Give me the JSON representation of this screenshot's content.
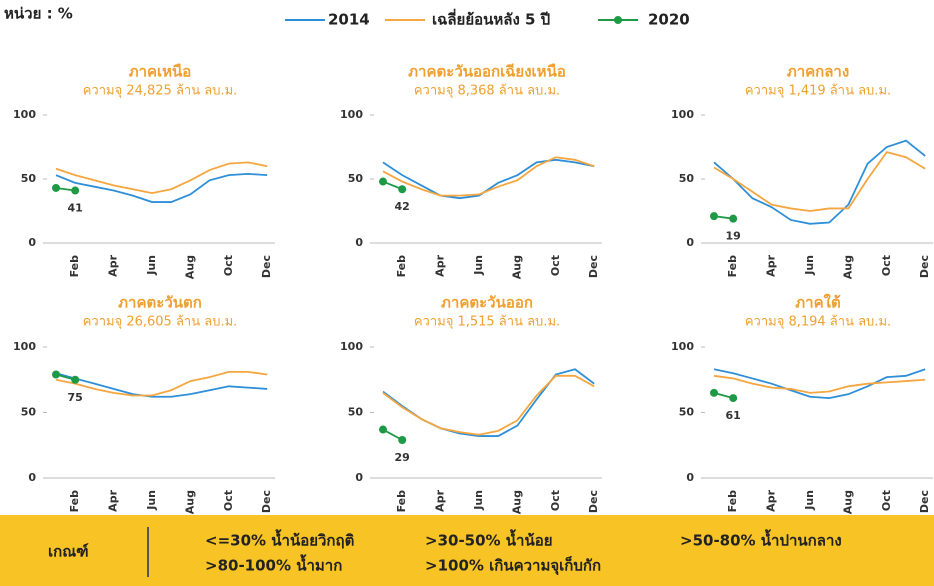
{
  "unit": "หน่วย : %",
  "criteria": {
    "label": "เกณฑ์",
    "items": [
      "<=30% น้ำน้อยวิกฤติ",
      ">80-100% น้ำมาก",
      ">30-50% น้ำน้อย",
      ">100% เกินความจุเก็บกัก",
      ">50-80% น้ำปานกลาง"
    ]
  },
  "chart_data": [
    {
      "type": "line",
      "title": "ภาคเหนือ",
      "subtitle": "ความจุ 24,825 ล้าน ลบ.ม.",
      "categories": [
        null,
        "Feb",
        null,
        "Apr",
        null,
        "Jun",
        null,
        "Aug",
        null,
        "Oct",
        null,
        "Dec"
      ],
      "series": [
        {
          "name": "2014",
          "color": "#2e8fd8",
          "values": [
            53,
            47,
            44,
            41,
            37,
            32,
            32,
            38,
            49,
            53,
            54,
            53
          ]
        },
        {
          "name": "เฉลี่ยย้อนหลัง 5 ปี",
          "color": "#f5a640",
          "values": [
            58,
            53,
            49,
            45,
            42,
            39,
            42,
            49,
            57,
            62,
            63,
            60
          ]
        },
        {
          "name": "2020",
          "color": "#1e9a46",
          "markers": true,
          "values": [
            43,
            41,
            null,
            null,
            null,
            null,
            null,
            null,
            null,
            null,
            null,
            null
          ]
        }
      ],
      "ylim": [
        0,
        100
      ],
      "yticks": [
        0,
        50,
        100
      ]
    },
    {
      "type": "line",
      "title": "ภาคตะวันออกเฉียงเหนือ",
      "subtitle": "ความจุ 8,368 ล้าน ลบ.ม.",
      "categories": [
        null,
        "Feb",
        null,
        "Apr",
        null,
        "Jun",
        null,
        "Aug",
        null,
        "Oct",
        null,
        "Dec"
      ],
      "series": [
        {
          "name": "2014",
          "color": "#2e8fd8",
          "values": [
            63,
            53,
            45,
            37,
            35,
            37,
            47,
            53,
            63,
            65,
            63,
            60
          ]
        },
        {
          "name": "เฉลี่ยย้อนหลัง 5 ปี",
          "color": "#f5a640",
          "values": [
            56,
            48,
            42,
            37,
            37,
            38,
            44,
            49,
            60,
            67,
            65,
            60
          ]
        },
        {
          "name": "2020",
          "color": "#1e9a46",
          "markers": true,
          "values": [
            48,
            42,
            null,
            null,
            null,
            null,
            null,
            null,
            null,
            null,
            null,
            null
          ]
        }
      ],
      "ylim": [
        0,
        100
      ],
      "yticks": [
        0,
        50,
        100
      ]
    },
    {
      "type": "line",
      "title": "ภาคกลาง",
      "subtitle": "ความจุ 1,419 ล้าน ลบ.ม.",
      "categories": [
        null,
        "Feb",
        null,
        "Apr",
        null,
        "Jun",
        null,
        "Aug",
        null,
        "Oct",
        null,
        "Dec"
      ],
      "series": [
        {
          "name": "2014",
          "color": "#2e8fd8",
          "values": [
            63,
            50,
            35,
            28,
            18,
            15,
            16,
            30,
            62,
            75,
            80,
            68
          ]
        },
        {
          "name": "เฉลี่ยย้อนหลัง 5 ปี",
          "color": "#f5a640",
          "values": [
            59,
            50,
            40,
            30,
            27,
            25,
            27,
            27,
            50,
            71,
            67,
            58
          ]
        },
        {
          "name": "2020",
          "color": "#1e9a46",
          "markers": true,
          "values": [
            21,
            19,
            null,
            null,
            null,
            null,
            null,
            null,
            null,
            null,
            null,
            null
          ]
        }
      ],
      "ylim": [
        0,
        100
      ],
      "yticks": [
        0,
        50,
        100
      ]
    },
    {
      "type": "line",
      "title": "ภาคตะวันตก",
      "subtitle": "ความจุ 26,605 ล้าน ลบ.ม.",
      "categories": [
        null,
        "Feb",
        null,
        "Apr",
        null,
        "Jun",
        null,
        "Aug",
        null,
        "Oct",
        null,
        "Dec"
      ],
      "series": [
        {
          "name": "2014",
          "color": "#2e8fd8",
          "values": [
            80,
            76,
            72,
            68,
            64,
            62,
            62,
            64,
            67,
            70,
            69,
            68
          ]
        },
        {
          "name": "เฉลี่ยย้อนหลัง 5 ปี",
          "color": "#f5a640",
          "values": [
            75,
            72,
            68,
            65,
            63,
            63,
            67,
            74,
            77,
            81,
            81,
            79
          ]
        },
        {
          "name": "2020",
          "color": "#1e9a46",
          "markers": true,
          "values": [
            79,
            75,
            null,
            null,
            null,
            null,
            null,
            null,
            null,
            null,
            null,
            null
          ]
        }
      ],
      "ylim": [
        0,
        100
      ],
      "yticks": [
        0,
        50,
        100
      ]
    },
    {
      "type": "line",
      "title": "ภาคตะวันออก",
      "subtitle": "ความจุ 1,515 ล้าน ลบ.ม.",
      "categories": [
        null,
        "Feb",
        null,
        "Apr",
        null,
        "Jun",
        null,
        "Aug",
        null,
        "Oct",
        null,
        "Dec"
      ],
      "series": [
        {
          "name": "2014",
          "color": "#2e8fd8",
          "values": [
            66,
            55,
            45,
            38,
            34,
            32,
            32,
            40,
            60,
            79,
            83,
            72
          ]
        },
        {
          "name": "เฉลี่ยย้อนหลัง 5 ปี",
          "color": "#f5a640",
          "values": [
            65,
            54,
            45,
            38,
            35,
            33,
            36,
            44,
            63,
            78,
            78,
            70
          ]
        },
        {
          "name": "2020",
          "color": "#1e9a46",
          "markers": true,
          "values": [
            37,
            29,
            null,
            null,
            null,
            null,
            null,
            null,
            null,
            null,
            null,
            null
          ]
        }
      ],
      "ylim": [
        0,
        100
      ],
      "yticks": [
        0,
        50,
        100
      ]
    },
    {
      "type": "line",
      "title": "ภาคใต้",
      "subtitle": "ความจุ 8,194 ล้าน ลบ.ม.",
      "categories": [
        null,
        "Feb",
        null,
        "Apr",
        null,
        "Jun",
        null,
        "Aug",
        null,
        "Oct",
        null,
        "Dec"
      ],
      "series": [
        {
          "name": "2014",
          "color": "#2e8fd8",
          "values": [
            83,
            80,
            76,
            72,
            67,
            62,
            61,
            64,
            70,
            77,
            78,
            83
          ]
        },
        {
          "name": "เฉลี่ยย้อนหลัง 5 ปี",
          "color": "#f5a640",
          "values": [
            78,
            76,
            72,
            69,
            68,
            65,
            66,
            70,
            72,
            73,
            74,
            75
          ]
        },
        {
          "name": "2020",
          "color": "#1e9a46",
          "markers": true,
          "values": [
            65,
            61,
            null,
            null,
            null,
            null,
            null,
            null,
            null,
            null,
            null,
            null
          ]
        }
      ],
      "ylim": [
        0,
        100
      ],
      "yticks": [
        0,
        50,
        100
      ]
    }
  ]
}
